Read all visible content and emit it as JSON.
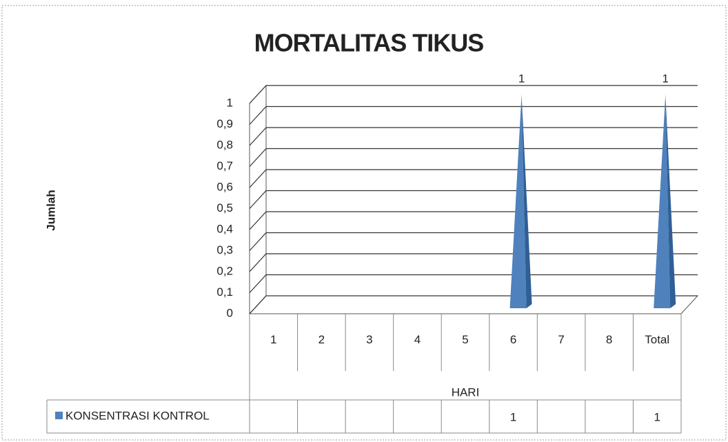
{
  "chart_data": {
    "type": "pyramid3d",
    "title": "MORTALITAS TIKUS",
    "x_label": "HARI",
    "y_label": "Jumlah",
    "categories": [
      "1",
      "2",
      "3",
      "4",
      "5",
      "6",
      "7",
      "8",
      "Total"
    ],
    "series": [
      {
        "name": "KONSENTRASI KONTROL",
        "color": "#4f81bd",
        "values": [
          null,
          null,
          null,
          null,
          null,
          1,
          null,
          null,
          1
        ]
      }
    ],
    "ylim": [
      0,
      1
    ],
    "yticks": [
      0,
      {
        "value": 0.1,
        "label": "0,1"
      },
      {
        "value": 0.2,
        "label": "0,2"
      },
      {
        "value": 0.3,
        "label": "0,3"
      },
      {
        "value": 0.4,
        "label": "0,4"
      },
      {
        "value": 0.5,
        "label": "0,5"
      },
      {
        "value": 0.6,
        "label": "0,6"
      },
      {
        "value": 0.7,
        "label": "0,7"
      },
      {
        "value": 0.8,
        "label": "0,8"
      },
      {
        "value": 0.9,
        "label": "0,9"
      },
      1
    ],
    "grid": true,
    "data_table": true
  }
}
